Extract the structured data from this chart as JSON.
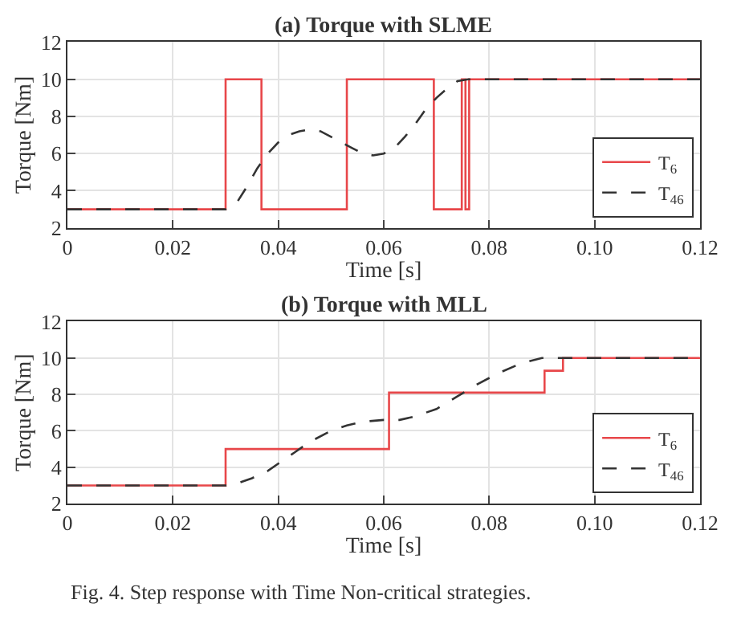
{
  "chart_data": [
    {
      "type": "line",
      "title": "(a) Torque with SLME",
      "xlabel": "Time [s]",
      "ylabel": "Torque [Nm]",
      "xlim": [
        0,
        0.12
      ],
      "ylim": [
        2,
        12
      ],
      "xticks": [
        0,
        0.02,
        0.04,
        0.06,
        0.08,
        {
          "value": 0.1,
          "label": "0.10"
        },
        0.12
      ],
      "yticks": [
        2,
        4,
        6,
        8,
        10,
        12
      ],
      "grid": true,
      "legend": "bottom right",
      "marker": "none",
      "series": [
        {
          "name": "T$_{6}$",
          "type": "step",
          "color": "#e8474a",
          "line_style": "solid",
          "x": [
            0,
            0.03,
            0.0368,
            0.053,
            0.0695,
            0.0748,
            0.0755,
            0.0762,
            0.12
          ],
          "values": [
            3,
            10,
            3,
            10,
            3,
            10,
            3,
            10,
            10
          ]
        },
        {
          "name": "T$_{46}$",
          "color": "#333333",
          "line_style": "dashed",
          "x": [
            0,
            0.03,
            0.032,
            0.034,
            0.036,
            0.038,
            0.04,
            0.042,
            0.044,
            0.046,
            0.048,
            0.05,
            0.052,
            0.054,
            0.056,
            0.058,
            0.06,
            0.062,
            0.064,
            0.066,
            0.068,
            0.07,
            0.072,
            0.074,
            0.076,
            0.12
          ],
          "values": [
            3,
            3,
            3.3,
            4.2,
            5.2,
            6.0,
            6.6,
            7.0,
            7.2,
            7.3,
            7.2,
            6.9,
            6.6,
            6.3,
            6.0,
            5.9,
            6.0,
            6.3,
            6.9,
            7.6,
            8.4,
            9.0,
            9.5,
            9.9,
            10,
            10
          ]
        }
      ]
    },
    {
      "type": "line",
      "title": "(b) Torque with MLL",
      "xlabel": "Time [s]",
      "ylabel": "Torque [Nm]",
      "xlim": [
        0,
        0.12
      ],
      "ylim": [
        2,
        12
      ],
      "xticks": [
        0,
        0.02,
        0.04,
        0.06,
        0.08,
        {
          "value": 0.1,
          "label": "0.10"
        },
        0.12
      ],
      "yticks": [
        2,
        4,
        6,
        8,
        10,
        12
      ],
      "grid": true,
      "legend": "bottom right",
      "marker": "none",
      "annotations": [
        "Fig. 4. Step response with Time Non-critical strategies."
      ],
      "series": [
        {
          "name": "T$_{6}$",
          "type": "step",
          "color": "#e8474a",
          "line_style": "solid",
          "x": [
            0,
            0.03,
            0.061,
            0.0905,
            0.094,
            0.12
          ],
          "values": [
            3,
            5.0,
            8.1,
            9.3,
            10,
            10
          ]
        },
        {
          "name": "T$_{46}$",
          "color": "#333333",
          "line_style": "dashed",
          "x": [
            0,
            0.03,
            0.032,
            0.035,
            0.038,
            0.04,
            0.043,
            0.046,
            0.05,
            0.053,
            0.056,
            0.06,
            0.063,
            0.066,
            0.07,
            0.074,
            0.078,
            0.082,
            0.086,
            0.09,
            0.094,
            0.12
          ],
          "values": [
            3,
            3,
            3.1,
            3.4,
            3.8,
            4.2,
            4.8,
            5.4,
            6.0,
            6.3,
            6.5,
            6.6,
            6.6,
            6.8,
            7.2,
            7.9,
            8.6,
            9.2,
            9.7,
            10,
            10,
            10
          ]
        }
      ]
    }
  ]
}
